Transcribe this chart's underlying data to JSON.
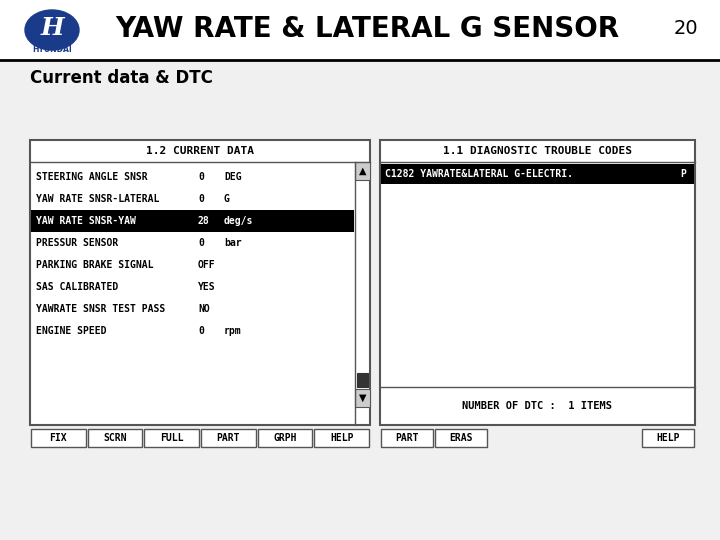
{
  "title": "YAW RATE & LATERAL G SENSOR",
  "page_number": "20",
  "subtitle": "Current data & DTC",
  "bg_color": "#f0f0f0",
  "left_panel_title": "1.2 CURRENT DATA",
  "left_rows": [
    {
      "label": "STEERING ANGLE SNSR",
      "value": "0",
      "unit": "DEG",
      "highlight": false
    },
    {
      "label": "YAW RATE SNSR-LATERAL",
      "value": "0",
      "unit": "G",
      "highlight": false
    },
    {
      "label": "YAW RATE SNSR-YAW",
      "value": "28",
      "unit": "deg/s",
      "highlight": true
    },
    {
      "label": "PRESSUR SENSOR",
      "value": "0",
      "unit": "bar",
      "highlight": false
    },
    {
      "label": "PARKING BRAKE SIGNAL",
      "value": "OFF",
      "unit": "",
      "highlight": false
    },
    {
      "label": "SAS CALIBRATED",
      "value": "YES",
      "unit": "",
      "highlight": false
    },
    {
      "label": "YAWRATE SNSR TEST PASS",
      "value": "NO",
      "unit": "",
      "highlight": false
    },
    {
      "label": "ENGINE SPEED",
      "value": "0",
      "unit": "rpm",
      "highlight": false
    }
  ],
  "left_buttons": [
    "FIX",
    "SCRN",
    "FULL",
    "PART",
    "GRPH",
    "HELP"
  ],
  "right_panel_title": "1.1 DIAGNOSTIC TROUBLE CODES",
  "right_rows": [
    {
      "label": "C1282 YAWRATE&LATERAL G-ELECTRI.",
      "value": "P",
      "highlight": true
    }
  ],
  "right_footer": "NUMBER OF DTC :  1 ITEMS",
  "right_buttons": [
    "PART",
    "ERAS",
    "HELP"
  ],
  "mono_font": "monospace"
}
